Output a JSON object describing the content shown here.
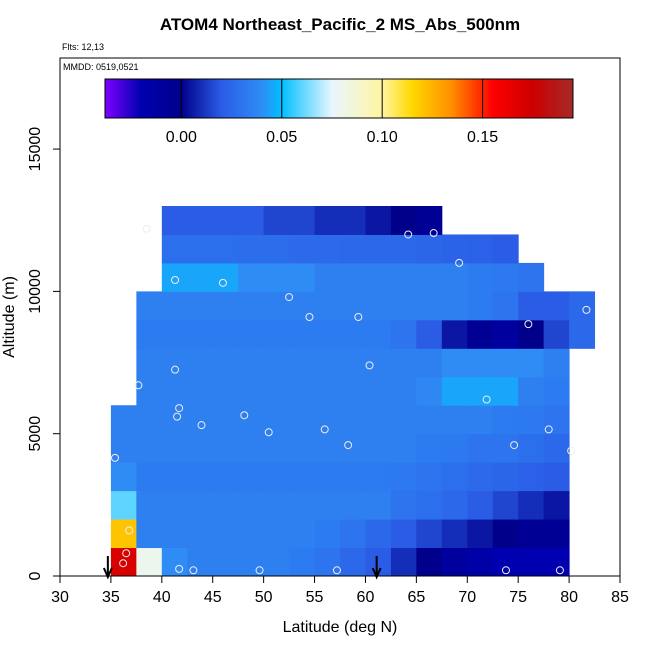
{
  "chart_data": {
    "type": "heatmap",
    "title": "ATOM4 Northeast_Pacific_2 MS_Abs_500nm",
    "annotations": [
      "Flts: 12,13",
      "MMDD: 0519,0521"
    ],
    "xlabel": "Latitude (deg N)",
    "ylabel": "Altitude (m)",
    "xlim": [
      30,
      85
    ],
    "xticks": [
      30,
      35,
      40,
      45,
      50,
      55,
      60,
      65,
      70,
      75,
      80,
      85
    ],
    "ylim": [
      0,
      18200
    ],
    "yticks": [
      0,
      5000,
      10000,
      15000
    ],
    "xbins": [
      35,
      37.5,
      40,
      42.5,
      45,
      47.5,
      50,
      52.5,
      55,
      57.5,
      60,
      62.5,
      65,
      67.5,
      70,
      72.5,
      75,
      77.5,
      80,
      82.5
    ],
    "ybins": [
      0,
      1000,
      2000,
      3000,
      4000,
      5000,
      6000,
      7000,
      8000,
      9000,
      10000,
      11000,
      12000,
      13000
    ],
    "z": [
      [
        0.17,
        0.08,
        0.04,
        0.035,
        0.035,
        0.035,
        0.035,
        0.033,
        0.03,
        0.025,
        0.02,
        0.01,
        0.0,
        -0.01,
        -0.015,
        -0.02,
        -0.02,
        -0.02,
        null
      ],
      [
        0.12,
        0.035,
        0.035,
        0.035,
        0.035,
        0.035,
        0.035,
        0.035,
        0.033,
        0.03,
        0.025,
        0.02,
        0.015,
        0.01,
        0.005,
        0.0,
        -0.005,
        -0.005,
        null
      ],
      [
        0.06,
        0.035,
        0.035,
        0.035,
        0.035,
        0.035,
        0.035,
        0.035,
        0.035,
        0.035,
        0.035,
        0.03,
        0.028,
        0.025,
        0.02,
        0.015,
        0.01,
        0.005,
        null
      ],
      [
        0.04,
        0.033,
        0.033,
        0.033,
        0.033,
        0.033,
        0.033,
        0.033,
        0.033,
        0.033,
        0.033,
        0.032,
        0.03,
        0.028,
        0.026,
        0.024,
        0.022,
        0.02,
        null
      ],
      [
        0.035,
        0.035,
        0.035,
        0.035,
        0.035,
        0.035,
        0.035,
        0.035,
        0.035,
        0.035,
        0.035,
        0.035,
        0.033,
        0.032,
        0.03,
        0.03,
        0.028,
        0.025,
        null
      ],
      [
        0.035,
        0.035,
        0.035,
        0.035,
        0.035,
        0.035,
        0.035,
        0.035,
        0.035,
        0.035,
        0.035,
        0.035,
        0.035,
        0.035,
        0.035,
        0.033,
        0.032,
        0.03,
        null
      ],
      [
        null,
        0.035,
        0.035,
        0.035,
        0.035,
        0.035,
        0.035,
        0.035,
        0.035,
        0.035,
        0.035,
        0.035,
        0.038,
        0.045,
        0.045,
        0.045,
        0.035,
        0.033,
        null
      ],
      [
        null,
        0.035,
        0.035,
        0.035,
        0.035,
        0.035,
        0.035,
        0.035,
        0.035,
        0.035,
        0.035,
        0.035,
        0.035,
        0.04,
        0.04,
        0.04,
        0.04,
        0.035,
        null
      ],
      [
        null,
        0.033,
        0.033,
        0.033,
        0.033,
        0.033,
        0.033,
        0.033,
        0.033,
        0.033,
        0.033,
        0.03,
        0.02,
        0.005,
        -0.005,
        -0.01,
        0.0,
        0.015,
        0.025
      ],
      [
        null,
        0.035,
        0.035,
        0.035,
        0.035,
        0.035,
        0.035,
        0.035,
        0.035,
        0.035,
        0.035,
        0.035,
        0.035,
        0.035,
        0.033,
        0.03,
        0.02,
        0.02,
        0.025
      ],
      [
        null,
        null,
        0.045,
        0.045,
        0.045,
        0.04,
        0.04,
        0.04,
        0.035,
        0.035,
        0.035,
        0.035,
        0.035,
        0.035,
        0.033,
        0.032,
        0.03,
        null,
        null
      ],
      [
        null,
        null,
        0.028,
        0.028,
        0.028,
        0.027,
        0.027,
        0.026,
        0.026,
        0.025,
        0.025,
        0.025,
        0.024,
        0.023,
        0.022,
        0.02,
        null,
        null,
        null
      ],
      [
        null,
        null,
        0.02,
        0.02,
        0.02,
        0.02,
        0.015,
        0.015,
        0.01,
        0.01,
        0.005,
        0.0,
        -0.005,
        null,
        null,
        null,
        null,
        null,
        null
      ]
    ],
    "colorbar_lim": [
      -0.038,
      0.195
    ],
    "colorbar_ticks": [
      {
        "value": 0,
        "label": "0.00"
      },
      {
        "value": 0.05,
        "label": "0.05"
      },
      {
        "value": 0.1,
        "label": "0.10"
      },
      {
        "value": 0.15,
        "label": "0.15"
      }
    ],
    "colorscale": [
      {
        "value": -0.038,
        "color": "#7f00ff"
      },
      {
        "value": -0.02,
        "color": "#0000b0"
      },
      {
        "value": 0.0,
        "color": "#00008b"
      },
      {
        "value": 0.02,
        "color": "#2a5ce6"
      },
      {
        "value": 0.04,
        "color": "#2f8cf5"
      },
      {
        "value": 0.05,
        "color": "#00bfff"
      },
      {
        "value": 0.075,
        "color": "#e8f6ff"
      },
      {
        "value": 0.1,
        "color": "#fff5a0"
      },
      {
        "value": 0.115,
        "color": "#ffd700"
      },
      {
        "value": 0.135,
        "color": "#ff8c00"
      },
      {
        "value": 0.155,
        "color": "#ff0000"
      },
      {
        "value": 0.175,
        "color": "#cc0000"
      },
      {
        "value": 0.195,
        "color": "#a52a2a"
      }
    ],
    "points": {
      "x": [
        38.5,
        64.2,
        66.7,
        41.3,
        46,
        69.2,
        52.5,
        54.5,
        59.3,
        76,
        81.7,
        60.4,
        41.3,
        37.7,
        71.9,
        41.7,
        41.5,
        48.1,
        43.9,
        50.5,
        56,
        78,
        58.3,
        74.6,
        80.2,
        35.4,
        36.8,
        36.5,
        36.2,
        41.7,
        43.1,
        49.6,
        57.2,
        73.8,
        79.1
      ],
      "y": [
        12200,
        12000,
        12050,
        10400,
        10300,
        11000,
        9800,
        9100,
        9100,
        8850,
        9350,
        7400,
        7250,
        6700,
        6200,
        5900,
        5600,
        5650,
        5300,
        5050,
        5150,
        5150,
        4600,
        4600,
        4400,
        4150,
        1600,
        800,
        450,
        250,
        200,
        200,
        200,
        200,
        200
      ]
    },
    "arrows_x": [
      34.7,
      61.1
    ]
  }
}
